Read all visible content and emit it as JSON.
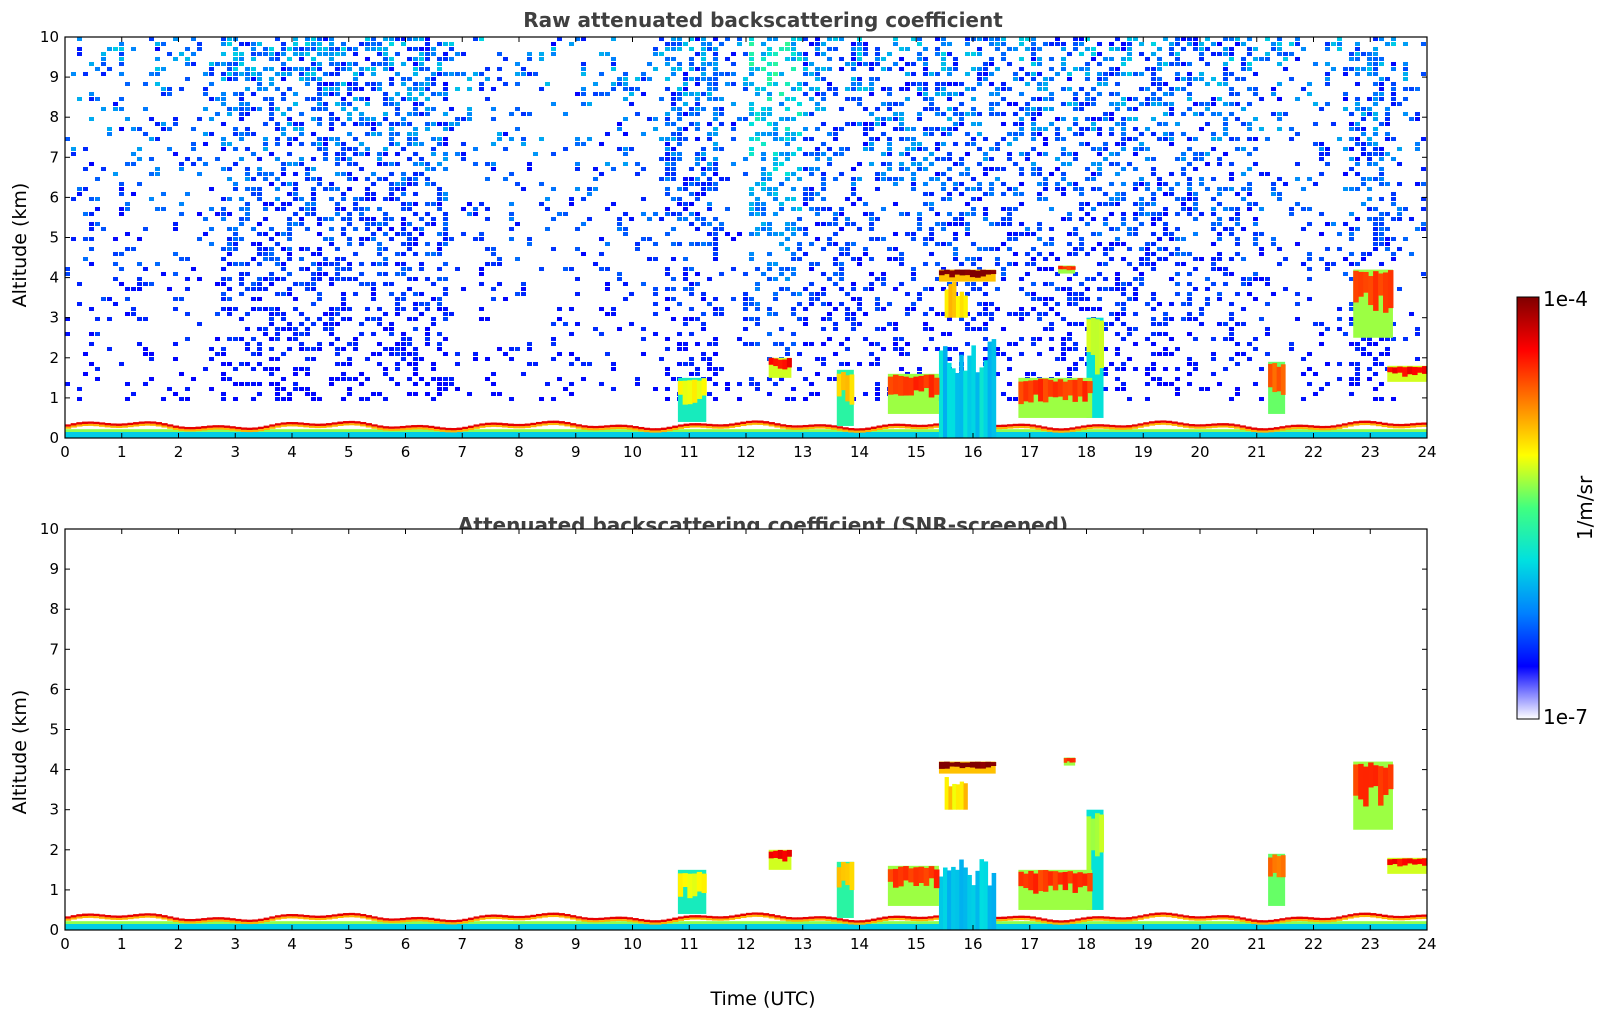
{
  "chart_data": [
    {
      "type": "heatmap",
      "title": "Raw attenuated backscattering coefficient",
      "xlabel": "",
      "ylabel": "Altitude (km)",
      "xlim": [
        0,
        24
      ],
      "ylim": [
        0,
        10
      ],
      "x_ticks": [
        "0",
        "1",
        "2",
        "3",
        "4",
        "5",
        "6",
        "7",
        "8",
        "9",
        "10",
        "11",
        "12",
        "13",
        "14",
        "15",
        "16",
        "17",
        "18",
        "19",
        "20",
        "21",
        "22",
        "23",
        "24"
      ],
      "y_ticks": [
        "0",
        "1",
        "2",
        "3",
        "4",
        "5",
        "6",
        "7",
        "8",
        "9",
        "10"
      ],
      "noise": true,
      "features": [
        {
          "t0": 0,
          "t1": 24,
          "h0": 0.15,
          "h1": 0.35,
          "level": 0.92,
          "kind": "boundary_layer"
        },
        {
          "t0": 12.4,
          "t1": 12.8,
          "h0": 1.5,
          "h1": 2.0,
          "level": 0.85,
          "kind": "cloud"
        },
        {
          "t0": 15.4,
          "t1": 16.4,
          "h0": 3.9,
          "h1": 4.2,
          "level": 0.98,
          "kind": "cloud"
        },
        {
          "t0": 15.5,
          "t1": 15.9,
          "h0": 3.0,
          "h1": 3.9,
          "level": 0.6,
          "kind": "virga"
        },
        {
          "t0": 15.4,
          "t1": 16.4,
          "h0": 0.0,
          "h1": 2.5,
          "level": 0.3,
          "kind": "precip"
        },
        {
          "t0": 17.5,
          "t1": 17.8,
          "h0": 4.1,
          "h1": 4.3,
          "level": 0.8,
          "kind": "cloud"
        },
        {
          "t0": 18.0,
          "t1": 18.3,
          "h0": 0.5,
          "h1": 3.0,
          "level": 0.55,
          "kind": "cloud"
        },
        {
          "t0": 21.2,
          "t1": 21.5,
          "h0": 0.6,
          "h1": 1.9,
          "level": 0.75,
          "kind": "cloud"
        },
        {
          "t0": 22.7,
          "t1": 23.4,
          "h0": 2.5,
          "h1": 4.2,
          "level": 0.8,
          "kind": "cloud"
        },
        {
          "t0": 23.3,
          "t1": 24,
          "h0": 1.4,
          "h1": 1.8,
          "level": 0.85,
          "kind": "cloud"
        },
        {
          "t0": 14.5,
          "t1": 15.4,
          "h0": 0.6,
          "h1": 1.6,
          "level": 0.8,
          "kind": "cloud"
        },
        {
          "t0": 16.8,
          "t1": 18.1,
          "h0": 0.5,
          "h1": 1.5,
          "level": 0.8,
          "kind": "cloud"
        },
        {
          "t0": 10.8,
          "t1": 11.3,
          "h0": 0.4,
          "h1": 1.5,
          "level": 0.6,
          "kind": "cloud"
        },
        {
          "t0": 13.6,
          "t1": 13.9,
          "h0": 0.3,
          "h1": 1.7,
          "level": 0.65,
          "kind": "cloud"
        }
      ]
    },
    {
      "type": "heatmap",
      "title": "Attenuated backscattering coefficient (SNR-screened)",
      "xlabel": "Time (UTC)",
      "ylabel": "Altitude (km)",
      "xlim": [
        0,
        24
      ],
      "ylim": [
        0,
        10
      ],
      "x_ticks": [
        "0",
        "1",
        "2",
        "3",
        "4",
        "5",
        "6",
        "7",
        "8",
        "9",
        "10",
        "11",
        "12",
        "13",
        "14",
        "15",
        "16",
        "17",
        "18",
        "19",
        "20",
        "21",
        "22",
        "23",
        "24"
      ],
      "y_ticks": [
        "0",
        "1",
        "2",
        "3",
        "4",
        "5",
        "6",
        "7",
        "8",
        "9",
        "10"
      ],
      "noise": false,
      "features": [
        {
          "t0": 0,
          "t1": 24,
          "h0": 0.15,
          "h1": 0.35,
          "level": 0.92,
          "kind": "boundary_layer"
        },
        {
          "t0": 12.4,
          "t1": 12.8,
          "h0": 1.5,
          "h1": 2.0,
          "level": 0.85,
          "kind": "cloud"
        },
        {
          "t0": 15.4,
          "t1": 16.4,
          "h0": 3.9,
          "h1": 4.2,
          "level": 0.98,
          "kind": "cloud"
        },
        {
          "t0": 15.5,
          "t1": 15.9,
          "h0": 3.0,
          "h1": 3.9,
          "level": 0.6,
          "kind": "virga"
        },
        {
          "t0": 15.4,
          "t1": 16.4,
          "h0": 0.0,
          "h1": 1.8,
          "level": 0.3,
          "kind": "precip"
        },
        {
          "t0": 17.6,
          "t1": 17.8,
          "h0": 4.1,
          "h1": 4.3,
          "level": 0.8,
          "kind": "cloud"
        },
        {
          "t0": 18.0,
          "t1": 18.3,
          "h0": 0.5,
          "h1": 3.0,
          "level": 0.55,
          "kind": "cloud"
        },
        {
          "t0": 21.2,
          "t1": 21.5,
          "h0": 0.6,
          "h1": 1.9,
          "level": 0.75,
          "kind": "cloud"
        },
        {
          "t0": 22.7,
          "t1": 23.4,
          "h0": 2.5,
          "h1": 4.2,
          "level": 0.8,
          "kind": "cloud"
        },
        {
          "t0": 23.3,
          "t1": 24,
          "h0": 1.4,
          "h1": 1.8,
          "level": 0.85,
          "kind": "cloud"
        },
        {
          "t0": 14.5,
          "t1": 15.4,
          "h0": 0.6,
          "h1": 1.6,
          "level": 0.8,
          "kind": "cloud"
        },
        {
          "t0": 16.8,
          "t1": 18.1,
          "h0": 0.5,
          "h1": 1.5,
          "level": 0.8,
          "kind": "cloud"
        },
        {
          "t0": 10.8,
          "t1": 11.3,
          "h0": 0.4,
          "h1": 1.5,
          "level": 0.6,
          "kind": "cloud"
        },
        {
          "t0": 13.6,
          "t1": 13.9,
          "h0": 0.3,
          "h1": 1.7,
          "level": 0.65,
          "kind": "cloud"
        }
      ]
    }
  ],
  "colorbar": {
    "max_label": "1e-4",
    "min_label": "1e-7",
    "unit_label": "1/m/sr",
    "colors": [
      "#ffffff",
      "#0000ff",
      "#0080ff",
      "#00e0e0",
      "#40ff80",
      "#ffff00",
      "#ff8000",
      "#ff0000",
      "#800000"
    ]
  }
}
